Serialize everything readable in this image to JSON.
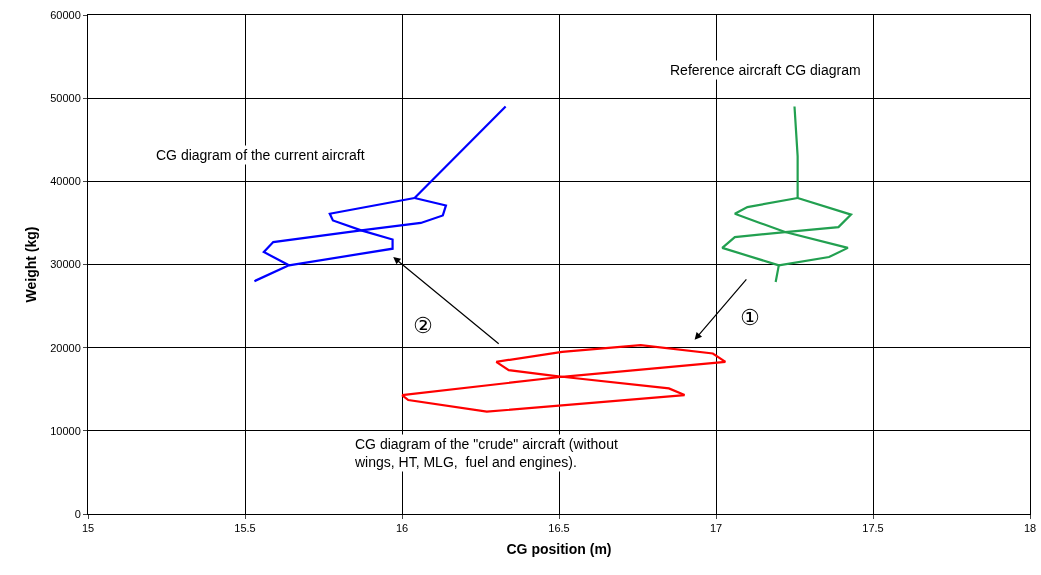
{
  "chart_data": {
    "type": "line",
    "xlabel": "CG position (m)",
    "ylabel": "Weight (kg)",
    "xlim": [
      15,
      18
    ],
    "xticks": [
      15,
      15.5,
      16,
      16.5,
      17,
      17.5,
      18
    ],
    "ylim": [
      0,
      60000
    ],
    "yticks": [
      0,
      10000,
      20000,
      30000,
      40000,
      50000,
      60000
    ],
    "grid": true,
    "series": [
      {
        "color": "#0000ff",
        "x": [
          16.33,
          16.04,
          16.14,
          16.13,
          16.06,
          15.87,
          15.59,
          15.56,
          15.64,
          15.53
        ],
        "values": [
          49000,
          38000,
          37100,
          35900,
          35000,
          34100,
          32700,
          31500,
          29900,
          28000
        ]
      },
      {
        "color": "#0000ff",
        "x": [
          15.64,
          15.97,
          15.97,
          15.87,
          15.78,
          15.77,
          16.04
        ],
        "values": [
          29900,
          31900,
          33000,
          34100,
          35300,
          36100,
          38000
        ]
      },
      {
        "color": "#22a050",
        "x": [
          17.25,
          17.26,
          17.26,
          17.43,
          17.39,
          17.22,
          17.06,
          17.02,
          17.2,
          17.19
        ],
        "values": [
          49000,
          43000,
          38000,
          36000,
          34500,
          33900,
          33300,
          32000,
          29900,
          27900
        ]
      },
      {
        "color": "#22a050",
        "x": [
          17.26,
          17.1,
          17.06,
          17.14,
          17.22,
          17.42,
          17.36,
          17.2
        ],
        "values": [
          38000,
          36900,
          36100,
          35000,
          33900,
          32000,
          30900,
          29900
        ]
      },
      {
        "color": "#ff0000",
        "x": [
          16.3,
          16.51,
          16.76,
          16.99,
          17.03
        ],
        "values": [
          18300,
          19500,
          20300,
          19300,
          18300
        ]
      },
      {
        "color": "#ff0000",
        "x": [
          17.03,
          16.51,
          16.34,
          16.3
        ],
        "values": [
          18300,
          16500,
          17300,
          18300
        ]
      },
      {
        "color": "#ff0000",
        "x": [
          16,
          16.51,
          16.85,
          16.9
        ],
        "values": [
          14300,
          16500,
          15100,
          14300
        ]
      },
      {
        "color": "#ff0000",
        "x": [
          16.9,
          16.27,
          16.02,
          16
        ],
        "values": [
          14300,
          12300,
          13700,
          14300
        ]
      }
    ],
    "annotations": [
      "CG diagram of the current aircraft",
      "Reference aircraft CG diagram",
      "CG diagram of the \"crude\" aircraft (without\nwings, HT, MLG,  fuel and engines).",
      "①",
      "②"
    ]
  }
}
